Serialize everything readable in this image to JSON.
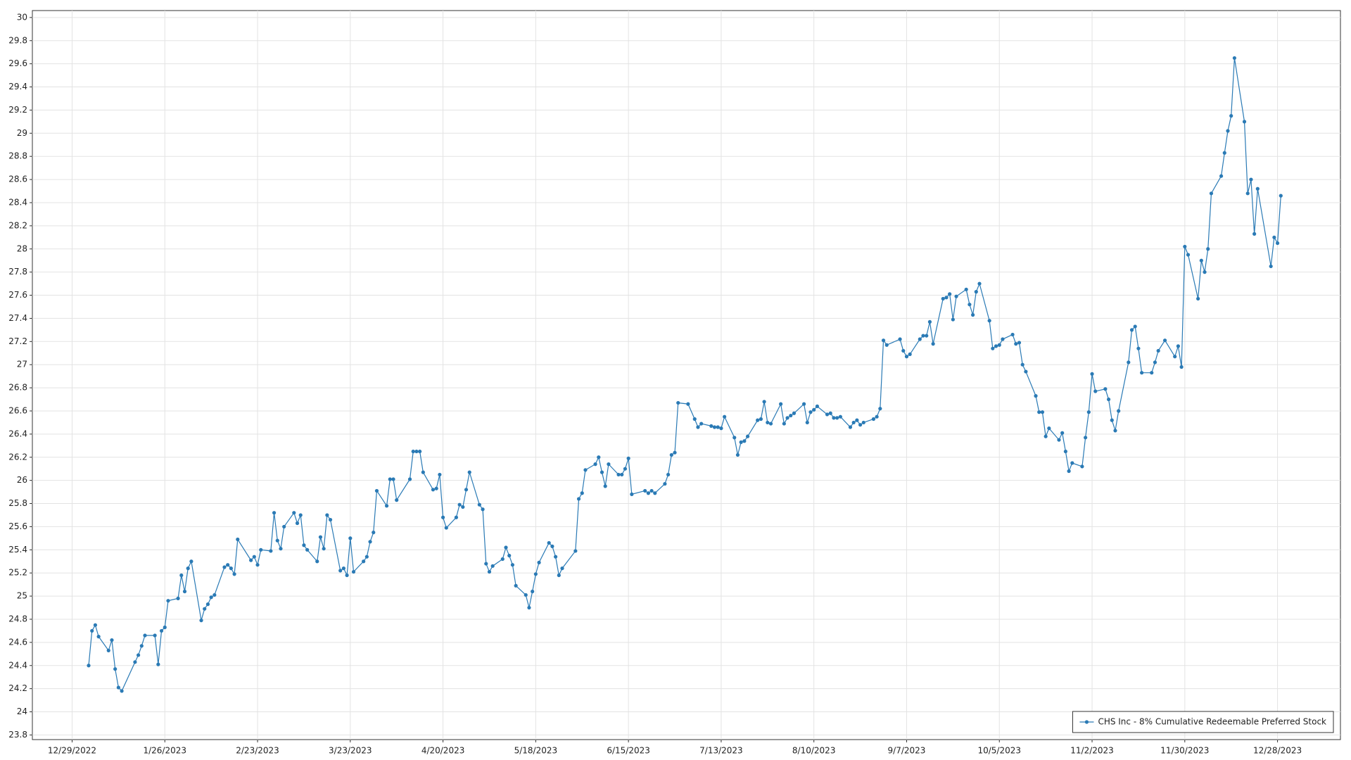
{
  "chart_data": {
    "type": "line",
    "x": [
      "1/3/2023",
      "1/4/2023",
      "1/5/2023",
      "1/6/2023",
      "1/9/2023",
      "1/10/2023",
      "1/11/2023",
      "1/12/2023",
      "1/13/2023",
      "1/17/2023",
      "1/18/2023",
      "1/19/2023",
      "1/20/2023",
      "1/23/2023",
      "1/24/2023",
      "1/25/2023",
      "1/26/2023",
      "1/27/2023",
      "1/30/2023",
      "1/31/2023",
      "2/1/2023",
      "2/2/2023",
      "2/3/2023",
      "2/6/2023",
      "2/7/2023",
      "2/8/2023",
      "2/9/2023",
      "2/10/2023",
      "2/13/2023",
      "2/14/2023",
      "2/15/2023",
      "2/16/2023",
      "2/17/2023",
      "2/21/2023",
      "2/22/2023",
      "2/23/2023",
      "2/24/2023",
      "2/27/2023",
      "2/28/2023",
      "3/1/2023",
      "3/2/2023",
      "3/3/2023",
      "3/6/2023",
      "3/7/2023",
      "3/8/2023",
      "3/9/2023",
      "3/10/2023",
      "3/13/2023",
      "3/14/2023",
      "3/15/2023",
      "3/16/2023",
      "3/17/2023",
      "3/20/2023",
      "3/21/2023",
      "3/22/2023",
      "3/23/2023",
      "3/24/2023",
      "3/27/2023",
      "3/28/2023",
      "3/29/2023",
      "3/30/2023",
      "3/31/2023",
      "4/3/2023",
      "4/4/2023",
      "4/5/2023",
      "4/6/2023",
      "4/10/2023",
      "4/11/2023",
      "4/12/2023",
      "4/13/2023",
      "4/14/2023",
      "4/17/2023",
      "4/18/2023",
      "4/19/2023",
      "4/20/2023",
      "4/21/2023",
      "4/24/2023",
      "4/25/2023",
      "4/26/2023",
      "4/27/2023",
      "4/28/2023",
      "5/1/2023",
      "5/2/2023",
      "5/3/2023",
      "5/4/2023",
      "5/5/2023",
      "5/8/2023",
      "5/9/2023",
      "5/10/2023",
      "5/11/2023",
      "5/12/2023",
      "5/15/2023",
      "5/16/2023",
      "5/17/2023",
      "5/18/2023",
      "5/19/2023",
      "5/22/2023",
      "5/23/2023",
      "5/24/2023",
      "5/25/2023",
      "5/26/2023",
      "5/30/2023",
      "5/31/2023",
      "6/1/2023",
      "6/2/2023",
      "6/5/2023",
      "6/6/2023",
      "6/7/2023",
      "6/8/2023",
      "6/9/2023",
      "6/12/2023",
      "6/13/2023",
      "6/14/2023",
      "6/15/2023",
      "6/16/2023",
      "6/20/2023",
      "6/21/2023",
      "6/22/2023",
      "6/23/2023",
      "6/26/2023",
      "6/27/2023",
      "6/28/2023",
      "6/29/2023",
      "6/30/2023",
      "7/3/2023",
      "7/5/2023",
      "7/6/2023",
      "7/7/2023",
      "7/10/2023",
      "7/11/2023",
      "7/12/2023",
      "7/13/2023",
      "7/14/2023",
      "7/17/2023",
      "7/18/2023",
      "7/19/2023",
      "7/20/2023",
      "7/21/2023",
      "7/24/2023",
      "7/25/2023",
      "7/26/2023",
      "7/27/2023",
      "7/28/2023",
      "7/31/2023",
      "8/1/2023",
      "8/2/2023",
      "8/3/2023",
      "8/4/2023",
      "8/7/2023",
      "8/8/2023",
      "8/9/2023",
      "8/10/2023",
      "8/11/2023",
      "8/14/2023",
      "8/15/2023",
      "8/16/2023",
      "8/17/2023",
      "8/18/2023",
      "8/21/2023",
      "8/22/2023",
      "8/23/2023",
      "8/24/2023",
      "8/25/2023",
      "8/28/2023",
      "8/29/2023",
      "8/30/2023",
      "8/31/2023",
      "9/1/2023",
      "9/5/2023",
      "9/6/2023",
      "9/7/2023",
      "9/8/2023",
      "9/11/2023",
      "9/12/2023",
      "9/13/2023",
      "9/14/2023",
      "9/15/2023",
      "9/18/2023",
      "9/19/2023",
      "9/20/2023",
      "9/21/2023",
      "9/22/2023",
      "9/25/2023",
      "9/26/2023",
      "9/27/2023",
      "9/28/2023",
      "9/29/2023",
      "10/2/2023",
      "10/3/2023",
      "10/4/2023",
      "10/5/2023",
      "10/6/2023",
      "10/9/2023",
      "10/10/2023",
      "10/11/2023",
      "10/12/2023",
      "10/13/2023",
      "10/16/2023",
      "10/17/2023",
      "10/18/2023",
      "10/19/2023",
      "10/20/2023",
      "10/23/2023",
      "10/24/2023",
      "10/25/2023",
      "10/26/2023",
      "10/27/2023",
      "10/30/2023",
      "10/31/2023",
      "11/1/2023",
      "11/2/2023",
      "11/3/2023",
      "11/6/2023",
      "11/7/2023",
      "11/8/2023",
      "11/9/2023",
      "11/10/2023",
      "11/13/2023",
      "11/14/2023",
      "11/15/2023",
      "11/16/2023",
      "11/17/2023",
      "11/20/2023",
      "11/21/2023",
      "11/22/2023",
      "11/24/2023",
      "11/27/2023",
      "11/28/2023",
      "11/29/2023",
      "11/30/2023",
      "12/1/2023",
      "12/4/2023",
      "12/5/2023",
      "12/6/2023",
      "12/7/2023",
      "12/8/2023",
      "12/11/2023",
      "12/12/2023",
      "12/13/2023",
      "12/14/2023",
      "12/15/2023",
      "12/18/2023",
      "12/19/2023",
      "12/20/2023",
      "12/21/2023",
      "12/22/2023",
      "12/26/2023",
      "12/27/2023",
      "12/28/2023",
      "12/29/2023"
    ],
    "series": [
      {
        "name": "CHS Inc - 8%  Cumulative Redeemable Preferred Stock",
        "color": "#2a7ab5",
        "values": [
          24.4,
          24.7,
          24.75,
          24.65,
          24.53,
          24.62,
          24.37,
          24.21,
          24.18,
          24.43,
          24.49,
          24.57,
          24.66,
          24.66,
          24.41,
          24.7,
          24.73,
          24.96,
          24.98,
          25.18,
          25.04,
          25.24,
          25.3,
          24.79,
          24.89,
          24.93,
          24.99,
          25.01,
          25.25,
          25.27,
          25.24,
          25.19,
          25.49,
          25.31,
          25.34,
          25.27,
          25.4,
          25.39,
          25.72,
          25.48,
          25.41,
          25.6,
          25.72,
          25.63,
          25.7,
          25.44,
          25.4,
          25.3,
          25.51,
          25.41,
          25.7,
          25.66,
          25.22,
          25.24,
          25.18,
          25.5,
          25.21,
          25.3,
          25.34,
          25.47,
          25.55,
          25.91,
          25.78,
          26.01,
          26.01,
          25.83,
          26.01,
          26.25,
          26.25,
          26.25,
          26.07,
          25.92,
          25.93,
          26.05,
          25.68,
          25.59,
          25.68,
          25.79,
          25.77,
          25.92,
          26.07,
          25.79,
          25.75,
          25.28,
          25.21,
          25.26,
          25.32,
          25.42,
          25.35,
          25.27,
          25.09,
          25.01,
          24.9,
          25.04,
          25.19,
          25.29,
          25.46,
          25.43,
          25.34,
          25.18,
          25.24,
          25.39,
          25.84,
          25.89,
          26.09,
          26.14,
          26.2,
          26.07,
          25.95,
          26.14,
          26.05,
          26.05,
          26.1,
          26.19,
          25.88,
          25.91,
          25.89,
          25.91,
          25.89,
          25.97,
          26.05,
          26.22,
          26.24,
          26.67,
          26.66,
          26.53,
          26.46,
          26.49,
          26.47,
          26.46,
          26.46,
          26.45,
          26.55,
          26.37,
          26.22,
          26.33,
          26.34,
          26.38,
          26.52,
          26.53,
          26.68,
          26.5,
          26.49,
          26.66,
          26.49,
          26.54,
          26.56,
          26.58,
          26.66,
          26.5,
          26.59,
          26.61,
          26.64,
          26.57,
          26.58,
          26.54,
          26.54,
          26.55,
          26.46,
          26.5,
          26.52,
          26.48,
          26.5,
          26.53,
          26.55,
          26.62,
          27.21,
          27.17,
          27.22,
          27.12,
          27.07,
          27.09,
          27.22,
          27.25,
          27.25,
          27.37,
          27.18,
          27.57,
          27.58,
          27.61,
          27.39,
          27.59,
          27.65,
          27.52,
          27.43,
          27.63,
          27.7,
          27.38,
          27.14,
          27.16,
          27.17,
          27.22,
          27.26,
          27.18,
          27.19,
          27.0,
          26.94,
          26.73,
          26.59,
          26.59,
          26.38,
          26.45,
          26.35,
          26.41,
          26.25,
          26.08,
          26.15,
          26.12,
          26.37,
          26.59,
          26.92,
          26.77,
          26.79,
          26.7,
          26.52,
          26.43,
          26.6,
          27.02,
          27.3,
          27.33,
          27.14,
          26.93,
          26.93,
          27.02,
          27.12,
          27.21,
          27.07,
          27.16,
          26.98,
          28.02,
          27.95,
          27.57,
          27.9,
          27.8,
          28.0,
          28.48,
          28.63,
          28.83,
          29.02,
          29.15,
          29.65,
          29.1,
          28.48,
          28.6,
          28.13,
          28.52,
          27.85,
          28.1,
          28.05,
          28.46
        ]
      }
    ],
    "xlim": [
      "12/17/2022",
      "1/16/2024"
    ],
    "xticks": [
      "12/29/2022",
      "1/26/2023",
      "2/23/2023",
      "3/23/2023",
      "4/20/2023",
      "5/18/2023",
      "6/15/2023",
      "7/13/2023",
      "8/10/2023",
      "9/7/2023",
      "10/5/2023",
      "11/2/2023",
      "11/30/2023",
      "12/28/2023"
    ],
    "ylim": [
      23.76,
      30.06
    ],
    "yticks": [
      23.8,
      24,
      24.2,
      24.4,
      24.6,
      24.8,
      25,
      25.2,
      25.4,
      25.6,
      25.8,
      26,
      26.2,
      26.4,
      26.6,
      26.8,
      27,
      27.2,
      27.4,
      27.6,
      27.8,
      28,
      28.2,
      28.4,
      28.6,
      28.8,
      29,
      29.2,
      29.4,
      29.6,
      29.8,
      30
    ],
    "grid": true,
    "legend": "bottom-right"
  }
}
